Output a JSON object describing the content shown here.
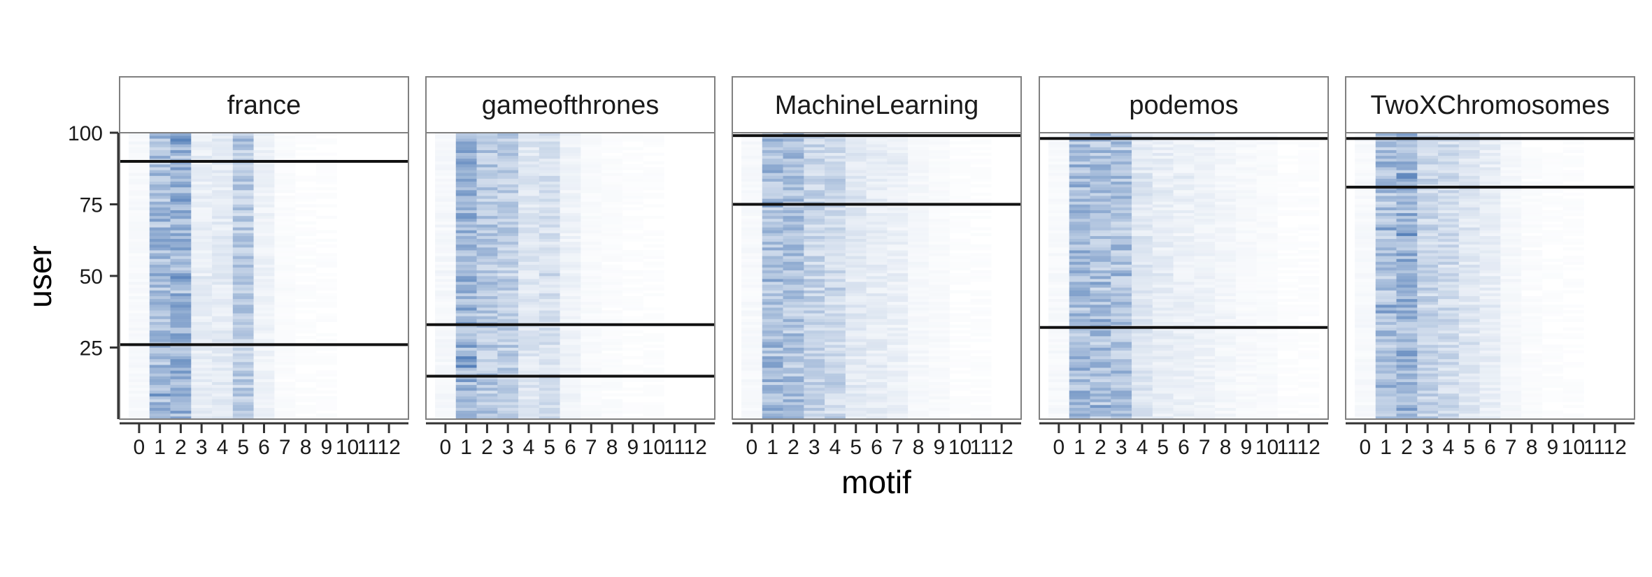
{
  "chart_data": {
    "type": "heatmap",
    "xlabel": "motif",
    "ylabel": "user",
    "x_ticks": [
      "0",
      "1",
      "2",
      "3",
      "4",
      "5",
      "6",
      "7",
      "8",
      "9",
      "10",
      "11",
      "12"
    ],
    "y_ticks": [
      25,
      50,
      75,
      100
    ],
    "ylim": [
      0,
      100
    ],
    "colors": {
      "low": "#ffffff",
      "high": "#3f6fb0",
      "divider": "#111111",
      "frame": "#808080"
    },
    "panels": [
      {
        "name": "france",
        "users": 100,
        "dividers": [
          90,
          26
        ],
        "motif_profile": [
          0.05,
          0.55,
          0.6,
          0.14,
          0.16,
          0.42,
          0.1,
          0.03,
          0.02,
          0.02,
          0.01,
          0.01,
          0.01
        ]
      },
      {
        "name": "gameofthrones",
        "users": 100,
        "dividers": [
          33,
          15
        ],
        "motif_profile": [
          0.06,
          0.6,
          0.45,
          0.4,
          0.2,
          0.25,
          0.1,
          0.04,
          0.03,
          0.02,
          0.02,
          0.01,
          0.01
        ]
      },
      {
        "name": "MachineLearning",
        "users": 100,
        "dividers": [
          99,
          75
        ],
        "motif_profile": [
          0.05,
          0.55,
          0.5,
          0.35,
          0.3,
          0.18,
          0.15,
          0.12,
          0.06,
          0.04,
          0.02,
          0.02,
          0.01
        ]
      },
      {
        "name": "podemos",
        "users": 100,
        "dividers": [
          98,
          32
        ],
        "motif_profile": [
          0.05,
          0.55,
          0.5,
          0.5,
          0.2,
          0.14,
          0.12,
          0.1,
          0.07,
          0.05,
          0.04,
          0.02,
          0.02
        ]
      },
      {
        "name": "TwoXChromosomes",
        "users": 100,
        "dividers": [
          98,
          81
        ],
        "motif_profile": [
          0.05,
          0.5,
          0.6,
          0.35,
          0.3,
          0.2,
          0.14,
          0.06,
          0.03,
          0.02,
          0.02,
          0.01,
          0.01
        ]
      }
    ]
  }
}
